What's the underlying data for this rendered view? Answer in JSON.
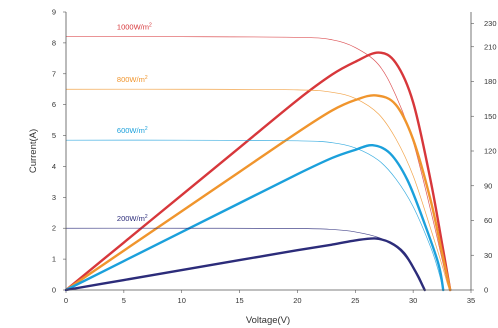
{
  "chart_data": {
    "type": "line",
    "title": "",
    "xlabel": "Voltage(V)",
    "ylabel": "Current(A)",
    "xlim": [
      0,
      35
    ],
    "ylim": [
      0,
      9
    ],
    "y2lim": [
      0,
      240
    ],
    "x_ticks": [
      "0",
      "5",
      "10",
      "15",
      "20",
      "25",
      "30",
      "35"
    ],
    "y_ticks": [
      "0",
      "1",
      "2",
      "3",
      "4",
      "5",
      "6",
      "7",
      "8",
      "9"
    ],
    "y2_ticks": [
      "0",
      "30",
      "60",
      "90",
      "120",
      "150",
      "180",
      "210",
      "230"
    ],
    "grid": false,
    "series": [
      {
        "name": "1000W/m²",
        "label_base": "1000W/m",
        "label_sup": "2",
        "color": "#d7373b",
        "iv": [
          [
            0,
            8.2
          ],
          [
            10,
            8.2
          ],
          [
            20,
            8.18
          ],
          [
            23,
            8.1
          ],
          [
            25,
            7.85
          ],
          [
            27,
            7.3
          ],
          [
            28.5,
            6.3
          ],
          [
            30,
            4.8
          ],
          [
            31.5,
            2.6
          ],
          [
            32.5,
            1.0
          ],
          [
            33,
            0.2
          ],
          [
            33.2,
            0
          ]
        ],
        "pv": [
          [
            0,
            0
          ],
          [
            5,
            41
          ],
          [
            10,
            82
          ],
          [
            15,
            123
          ],
          [
            20,
            164
          ],
          [
            23,
            186
          ],
          [
            25,
            197
          ],
          [
            27,
            205
          ],
          [
            28.5,
            196
          ],
          [
            30,
            162
          ],
          [
            31.5,
            95
          ],
          [
            32.5,
            40
          ],
          [
            33.2,
            0
          ]
        ]
      },
      {
        "name": "800W/m²",
        "label_base": "800W/m",
        "label_sup": "2",
        "color": "#f0952d",
        "iv": [
          [
            0,
            6.5
          ],
          [
            10,
            6.5
          ],
          [
            20,
            6.48
          ],
          [
            23,
            6.4
          ],
          [
            25,
            6.2
          ],
          [
            27,
            5.7
          ],
          [
            28.5,
            4.9
          ],
          [
            30,
            3.7
          ],
          [
            31.5,
            2.0
          ],
          [
            32.5,
            0.8
          ],
          [
            33,
            0.15
          ],
          [
            33.2,
            0
          ]
        ],
        "pv": [
          [
            0,
            0
          ],
          [
            5,
            34
          ],
          [
            10,
            68
          ],
          [
            15,
            102
          ],
          [
            20,
            136
          ],
          [
            23,
            155
          ],
          [
            25,
            164
          ],
          [
            26.8,
            168
          ],
          [
            28.5,
            160
          ],
          [
            30,
            130
          ],
          [
            31.5,
            78
          ],
          [
            32.5,
            32
          ],
          [
            33.2,
            0
          ]
        ]
      },
      {
        "name": "600W/m²",
        "label_base": "600W/m",
        "label_sup": "2",
        "color": "#1ba0db",
        "iv": [
          [
            0,
            4.85
          ],
          [
            10,
            4.85
          ],
          [
            20,
            4.83
          ],
          [
            23,
            4.77
          ],
          [
            25,
            4.6
          ],
          [
            27,
            4.2
          ],
          [
            28.5,
            3.6
          ],
          [
            30,
            2.7
          ],
          [
            31.5,
            1.4
          ],
          [
            32.2,
            0.6
          ],
          [
            32.6,
            0
          ]
        ],
        "pv": [
          [
            0,
            0
          ],
          [
            5,
            25
          ],
          [
            10,
            50
          ],
          [
            15,
            75
          ],
          [
            20,
            100
          ],
          [
            23,
            114
          ],
          [
            25,
            121
          ],
          [
            26.5,
            125
          ],
          [
            28,
            118
          ],
          [
            29.5,
            95
          ],
          [
            31,
            57
          ],
          [
            32.2,
            22
          ],
          [
            32.6,
            0
          ]
        ]
      },
      {
        "name": "200W/m²",
        "label_base": "200W/m",
        "label_sup": "2",
        "color": "#2c2c7a",
        "iv": [
          [
            0,
            2.0
          ],
          [
            10,
            2.0
          ],
          [
            20,
            1.99
          ],
          [
            23,
            1.96
          ],
          [
            25,
            1.88
          ],
          [
            27,
            1.7
          ],
          [
            28.5,
            1.4
          ],
          [
            29.5,
            1.0
          ],
          [
            30.5,
            0.45
          ],
          [
            31,
            0
          ]
        ],
        "pv": [
          [
            0,
            0
          ],
          [
            5,
            8.6
          ],
          [
            10,
            17.2
          ],
          [
            15,
            25.8
          ],
          [
            20,
            34.4
          ],
          [
            23,
            39.2
          ],
          [
            25,
            42.8
          ],
          [
            26.7,
            44.5
          ],
          [
            28,
            41
          ],
          [
            29.2,
            32
          ],
          [
            30.2,
            16
          ],
          [
            31,
            0
          ]
        ]
      }
    ]
  }
}
